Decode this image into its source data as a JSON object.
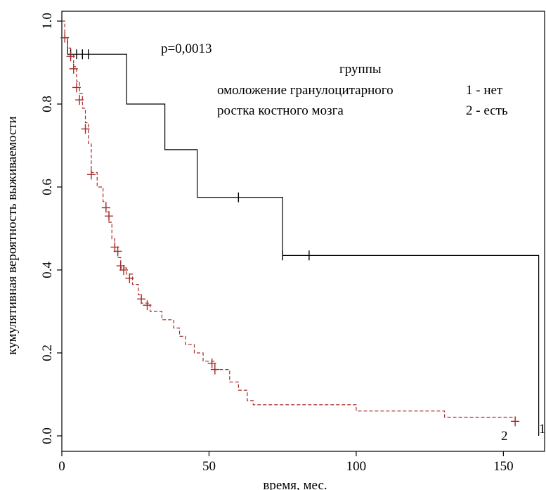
{
  "chart_data": {
    "type": "line",
    "subtype": "kaplan-meier survival curve",
    "title": "",
    "xlabel": "время, мес.",
    "ylabel": "кумулятивная вероятность выживаемости",
    "xlim": [
      0,
      164
    ],
    "ylim": [
      0,
      1.0
    ],
    "x_ticks": [
      0,
      50,
      100,
      150
    ],
    "y_ticks": [
      0.0,
      0.2,
      0.4,
      0.6,
      0.8,
      1.0
    ],
    "y_tick_labels": [
      "0.0",
      "0.2",
      "0.4",
      "0.6",
      "0.8",
      "1.0"
    ],
    "grid": false,
    "p_value_text": "p=0,0013",
    "legend": {
      "title": "группы",
      "lines": [
        {
          "text": "омоложение гранулоцитарного",
          "code": "1 - нет"
        },
        {
          "text": "ростка костного мозга",
          "code": "2 - есть"
        }
      ]
    },
    "series": [
      {
        "id": "1",
        "end_label": "1",
        "color": "#000000",
        "dashed": false,
        "steps": [
          [
            0,
            0.96
          ],
          [
            2,
            0.92
          ],
          [
            22,
            0.8
          ],
          [
            35,
            0.69
          ],
          [
            46,
            0.575
          ],
          [
            75,
            0.435
          ],
          [
            162,
            0.0
          ]
        ],
        "censored": [
          [
            3,
            0.92
          ],
          [
            5,
            0.92
          ],
          [
            7,
            0.92
          ],
          [
            9,
            0.92
          ],
          [
            60,
            0.575
          ],
          [
            75,
            0.435
          ],
          [
            84,
            0.435
          ]
        ]
      },
      {
        "id": "2",
        "end_label": "2",
        "color": "#a52a2a",
        "dashed": true,
        "steps": [
          [
            0,
            1.0
          ],
          [
            1,
            0.96
          ],
          [
            2,
            0.935
          ],
          [
            3,
            0.92
          ],
          [
            4,
            0.89
          ],
          [
            5,
            0.855
          ],
          [
            6,
            0.825
          ],
          [
            7,
            0.79
          ],
          [
            8,
            0.755
          ],
          [
            9,
            0.705
          ],
          [
            10,
            0.635
          ],
          [
            12,
            0.6
          ],
          [
            14,
            0.565
          ],
          [
            15,
            0.54
          ],
          [
            16,
            0.515
          ],
          [
            17,
            0.475
          ],
          [
            18,
            0.445
          ],
          [
            19,
            0.43
          ],
          [
            20,
            0.405
          ],
          [
            22,
            0.39
          ],
          [
            24,
            0.365
          ],
          [
            26,
            0.34
          ],
          [
            27,
            0.32
          ],
          [
            30,
            0.3
          ],
          [
            34,
            0.28
          ],
          [
            38,
            0.26
          ],
          [
            40,
            0.24
          ],
          [
            42,
            0.22
          ],
          [
            45,
            0.2
          ],
          [
            48,
            0.18
          ],
          [
            52,
            0.16
          ],
          [
            57,
            0.13
          ],
          [
            60,
            0.11
          ],
          [
            63,
            0.085
          ],
          [
            65,
            0.075
          ],
          [
            100,
            0.06
          ],
          [
            130,
            0.045
          ],
          [
            154,
            0.035
          ]
        ],
        "censored": [
          [
            1,
            0.96
          ],
          [
            3,
            0.915
          ],
          [
            4,
            0.885
          ],
          [
            5,
            0.84
          ],
          [
            6,
            0.81
          ],
          [
            8,
            0.74
          ],
          [
            10,
            0.63
          ],
          [
            15,
            0.55
          ],
          [
            16,
            0.53
          ],
          [
            18,
            0.455
          ],
          [
            19,
            0.445
          ],
          [
            20,
            0.41
          ],
          [
            21,
            0.4
          ],
          [
            23,
            0.38
          ],
          [
            27,
            0.33
          ],
          [
            29,
            0.315
          ],
          [
            51,
            0.175
          ],
          [
            52,
            0.16
          ],
          [
            154,
            0.035
          ]
        ]
      }
    ]
  }
}
